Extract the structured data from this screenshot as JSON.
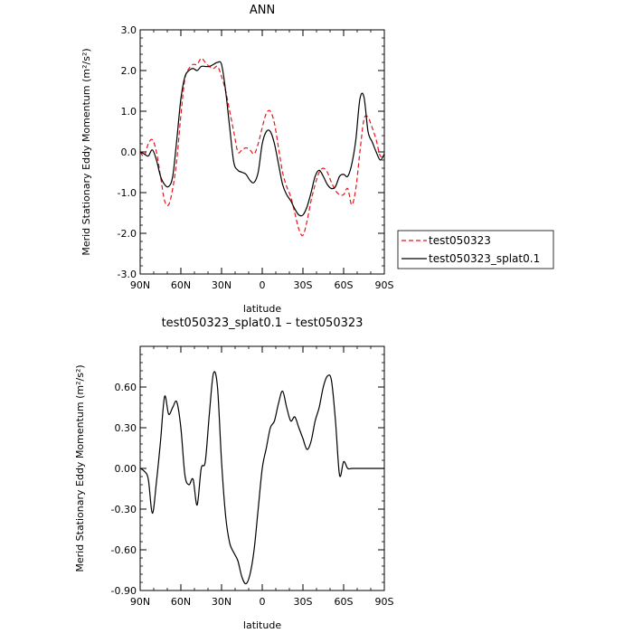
{
  "chart_data": [
    {
      "type": "line",
      "title": "ANN",
      "xlabel": "latitude",
      "ylabel": "Merid Stationary Eddy Momentum (m²/s²)",
      "xlim": [
        90,
        -90
      ],
      "ylim": [
        -3.0,
        3.0
      ],
      "x_ticks": [
        90,
        60,
        30,
        0,
        -30,
        -60,
        -90
      ],
      "x_tick_labels": [
        "90N",
        "60N",
        "30N",
        "0",
        "30S",
        "60S",
        "90S"
      ],
      "y_ticks": [
        -3,
        -2,
        -1,
        0,
        1,
        2,
        3
      ],
      "y_tick_labels": [
        "-3.0",
        "-2.0",
        "-1.0",
        "0.0",
        "1.0",
        "2.0",
        "3.0"
      ],
      "grid": false,
      "legend_position": "right",
      "series": [
        {
          "name": "test050323",
          "color": "#e8141c",
          "dash": "dashed",
          "x": [
            90,
            87,
            84,
            81,
            78,
            75,
            72,
            69,
            66,
            63,
            60,
            57,
            54,
            51,
            48,
            45,
            42,
            39,
            36,
            33,
            30,
            27,
            24,
            21,
            18,
            15,
            12,
            9,
            6,
            3,
            0,
            -3,
            -6,
            -9,
            -12,
            -15,
            -18,
            -21,
            -24,
            -27,
            -30,
            -33,
            -36,
            -39,
            -42,
            -45,
            -48,
            -51,
            -54,
            -57,
            -60,
            -63,
            -66,
            -69,
            -72,
            -75,
            -78,
            -81,
            -84,
            -87,
            -90
          ],
          "y": [
            0.0,
            -0.1,
            0.2,
            0.3,
            0.0,
            -0.6,
            -1.2,
            -1.3,
            -0.9,
            -0.2,
            0.9,
            1.8,
            2.05,
            2.15,
            2.15,
            2.3,
            2.2,
            2.1,
            2.05,
            2.1,
            1.85,
            1.5,
            1.0,
            0.5,
            0.0,
            0.05,
            0.1,
            0.05,
            -0.05,
            0.2,
            0.6,
            0.95,
            1.0,
            0.7,
            0.1,
            -0.5,
            -0.85,
            -1.1,
            -1.5,
            -1.9,
            -2.05,
            -1.7,
            -1.2,
            -0.8,
            -0.5,
            -0.4,
            -0.5,
            -0.75,
            -0.95,
            -1.05,
            -1.05,
            -0.9,
            -1.3,
            -0.9,
            0.0,
            0.8,
            0.85,
            0.6,
            0.3,
            -0.1,
            -0.05
          ]
        },
        {
          "name": "test050323_splat0.1",
          "color": "#000000",
          "dash": "solid",
          "x": [
            90,
            87,
            84,
            81,
            78,
            75,
            72,
            69,
            66,
            63,
            60,
            57,
            54,
            51,
            48,
            45,
            42,
            39,
            36,
            33,
            30,
            27,
            24,
            21,
            18,
            15,
            12,
            9,
            6,
            3,
            0,
            -3,
            -6,
            -9,
            -12,
            -15,
            -18,
            -21,
            -24,
            -27,
            -30,
            -33,
            -36,
            -39,
            -42,
            -45,
            -48,
            -51,
            -54,
            -57,
            -60,
            -63,
            -66,
            -69,
            -72,
            -75,
            -78,
            -81,
            -84,
            -87,
            -90
          ],
          "y": [
            0.0,
            -0.05,
            -0.1,
            0.05,
            -0.2,
            -0.6,
            -0.8,
            -0.85,
            -0.6,
            0.3,
            1.3,
            1.85,
            2.0,
            2.05,
            2.0,
            2.1,
            2.1,
            2.1,
            2.15,
            2.2,
            2.15,
            1.5,
            0.6,
            -0.25,
            -0.45,
            -0.5,
            -0.55,
            -0.7,
            -0.75,
            -0.5,
            0.2,
            0.5,
            0.5,
            0.2,
            -0.3,
            -0.8,
            -1.05,
            -1.2,
            -1.4,
            -1.55,
            -1.55,
            -1.35,
            -1.0,
            -0.6,
            -0.45,
            -0.6,
            -0.8,
            -0.9,
            -0.85,
            -0.6,
            -0.55,
            -0.6,
            -0.3,
            0.3,
            1.3,
            1.35,
            0.5,
            0.25,
            0.0,
            -0.2,
            -0.05
          ]
        }
      ]
    },
    {
      "type": "line",
      "title": "test050323_splat0.1 – test050323",
      "xlabel": "latitude",
      "ylabel": "Merid Stationary Eddy Momentum (m²/s²)",
      "xlim": [
        90,
        -90
      ],
      "ylim": [
        -0.9,
        0.9
      ],
      "x_ticks": [
        90,
        60,
        30,
        0,
        -30,
        -60,
        -90
      ],
      "x_tick_labels": [
        "90N",
        "60N",
        "30N",
        "0",
        "30S",
        "60S",
        "90S"
      ],
      "y_ticks": [
        -0.9,
        -0.6,
        -0.3,
        0.0,
        0.3,
        0.6
      ],
      "y_tick_labels": [
        "-0.90",
        "-0.60",
        "-0.30",
        "0.00",
        "0.30",
        "0.60"
      ],
      "grid": false,
      "series": [
        {
          "color": "#000000",
          "dash": "solid",
          "x": [
            90,
            87,
            84,
            81,
            78,
            75,
            72,
            69,
            66,
            63,
            60,
            57,
            54,
            51,
            48,
            45,
            42,
            39,
            36,
            33,
            30,
            27,
            24,
            21,
            18,
            15,
            12,
            9,
            6,
            3,
            0,
            -3,
            -6,
            -9,
            -12,
            -15,
            -18,
            -21,
            -24,
            -27,
            -30,
            -33,
            -36,
            -39,
            -42,
            -45,
            -48,
            -51,
            -54,
            -57,
            -60,
            -63,
            -66,
            -69,
            -72,
            -75,
            -78,
            -81,
            -84,
            -87,
            -90
          ],
          "y": [
            0.0,
            -0.02,
            -0.08,
            -0.33,
            -0.1,
            0.2,
            0.53,
            0.4,
            0.45,
            0.49,
            0.3,
            -0.05,
            -0.12,
            -0.08,
            -0.27,
            0.0,
            0.05,
            0.4,
            0.7,
            0.6,
            0.05,
            -0.35,
            -0.55,
            -0.62,
            -0.68,
            -0.8,
            -0.85,
            -0.78,
            -0.6,
            -0.3,
            0.0,
            0.15,
            0.3,
            0.35,
            0.48,
            0.57,
            0.45,
            0.35,
            0.38,
            0.3,
            0.22,
            0.14,
            0.2,
            0.35,
            0.45,
            0.6,
            0.68,
            0.65,
            0.35,
            -0.05,
            0.05,
            0.0,
            0.0,
            0.0,
            0.0,
            0.0,
            0.0,
            0.0,
            0.0,
            0.0,
            0.0
          ]
        }
      ]
    }
  ]
}
